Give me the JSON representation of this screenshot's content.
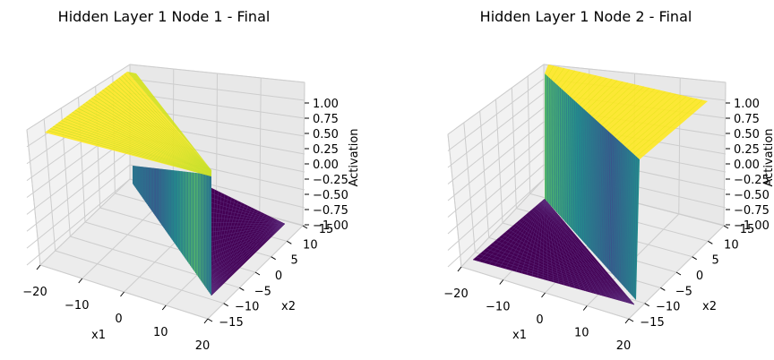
{
  "chart_data": [
    {
      "type": "surface",
      "title": "Hidden Layer 1 Node 1 - Final",
      "xlabel": "x1",
      "ylabel": "x2",
      "zlabel": "Activation",
      "xticks": [
        "−20",
        "−10",
        "0",
        "10",
        "20"
      ],
      "yticks": [
        "−15",
        "−10",
        "−5",
        "0",
        "5",
        "10",
        "15"
      ],
      "zticks": [
        "−1.00",
        "−0.75",
        "−0.50",
        "−0.25",
        "0.00",
        "0.25",
        "0.50",
        "0.75",
        "1.00"
      ],
      "xlim": [
        -20,
        20
      ],
      "ylim": [
        -15,
        15
      ],
      "zlim": [
        -1,
        1
      ],
      "colormap": "viridis",
      "regions": [
        {
          "description_value": 1.0,
          "region": "x1 < 0, triangular half-plane"
        },
        {
          "description_value": -1.0,
          "region": "x1 > 0, triangular half-plane"
        }
      ]
    },
    {
      "type": "surface",
      "title": "Hidden Layer 1 Node 2 - Final",
      "xlabel": "x1",
      "ylabel": "x2",
      "zlabel": "Activation",
      "xticks": [
        "−20",
        "−10",
        "0",
        "10",
        "20"
      ],
      "yticks": [
        "−15",
        "−10",
        "−5",
        "0",
        "5",
        "10",
        "15"
      ],
      "zticks": [
        "−1.00",
        "−0.75",
        "−0.50",
        "−0.25",
        "0.00",
        "0.25",
        "0.50",
        "0.75",
        "1.00"
      ],
      "xlim": [
        -20,
        20
      ],
      "ylim": [
        -15,
        15
      ],
      "zlim": [
        -1,
        1
      ],
      "colormap": "viridis",
      "regions": [
        {
          "description_value": 1.0,
          "region": "upper triangular half-plane"
        },
        {
          "description_value": -1.0,
          "region": "lower triangular half-plane"
        }
      ]
    }
  ],
  "colors": {
    "high": "#fde725",
    "low": "#440154",
    "mid_teal": "#21918c",
    "mid_blue": "#3b528b",
    "mid_green": "#5ec962",
    "pane": "#f2f2f2",
    "pane_dark": "#e6e6e6",
    "grid": "#cfcfcf"
  }
}
